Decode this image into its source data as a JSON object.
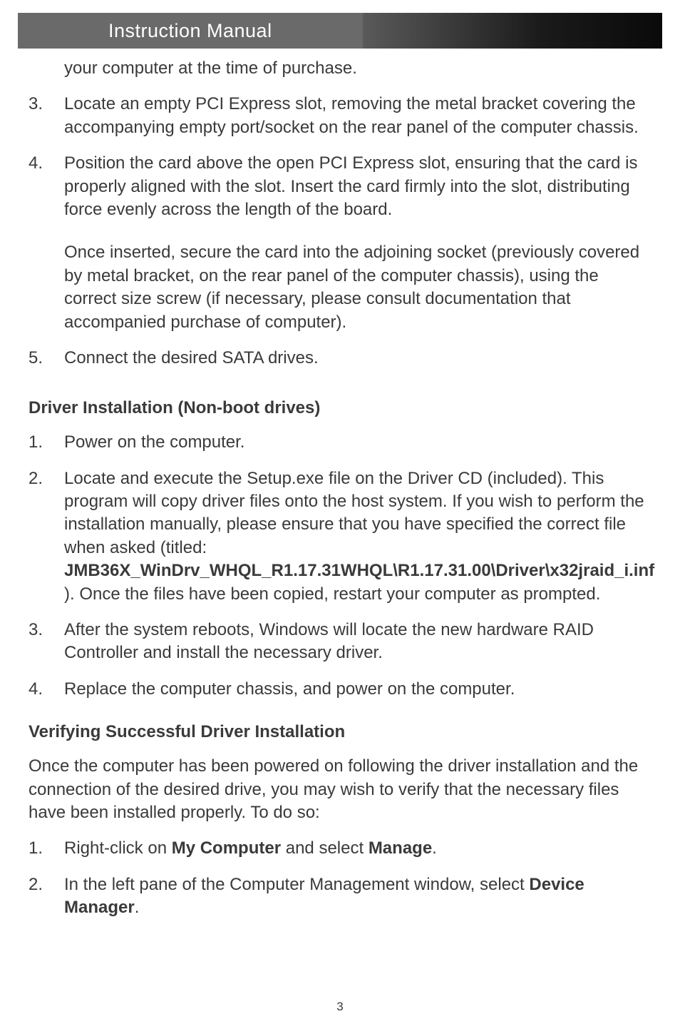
{
  "header": {
    "title": "Instruction Manual"
  },
  "content": {
    "continuation": "your computer at the time of purchase.",
    "list1": {
      "item3": "Locate an empty PCI Express slot, removing the metal bracket covering the accompanying empty port/socket on the rear panel of the computer chassis.",
      "item4_p1": "Position the card above the open PCI Express slot, ensuring that the card is properly aligned with the slot. Insert the card firmly into the slot, distributing force evenly across the length of the board.",
      "item4_p2": "Once inserted, secure the card into the adjoining socket (previously covered by metal bracket, on the rear panel of the computer chassis), using the correct size screw (if necessary, please consult documentation that accompanied purchase of computer).",
      "item5": "Connect the desired SATA drives."
    },
    "heading1": "Driver Installation (Non-boot drives)",
    "list2": {
      "item1": "Power on the computer.",
      "item2_pre": "Locate and execute the Setup.exe file on the Driver CD (included). This program will copy driver files onto the host system. If you wish to perform the installation manually, please ensure that you have specified the correct file when asked (titled: ",
      "item2_bold": "JMB36X_WinDrv_WHQL_R1.17.31WHQL\\R1.17.31.00\\Driver\\x32jraid_i.inf",
      "item2_post": " ). Once the files have been copied, restart your computer as prompted.",
      "item3": "After the system reboots, Windows will locate the new hardware RAID Controller and install the necessary driver.",
      "item4": "Replace the computer chassis, and power on the computer."
    },
    "heading2": "Verifying Successful Driver Installation",
    "para1": "Once the computer has been powered on following the driver installation and the connection of the desired drive, you may wish to verify that the necessary files have been installed properly.  To do so:",
    "list3": {
      "item1_pre": "Right-click on ",
      "item1_bold1": "My Computer",
      "item1_mid": " and select ",
      "item1_bold2": "Manage",
      "item1_post": ".",
      "item2_pre": "In the left pane of the Computer Management window, select ",
      "item2_bold": "Device Manager",
      "item2_post": "."
    }
  },
  "page_number": "3"
}
